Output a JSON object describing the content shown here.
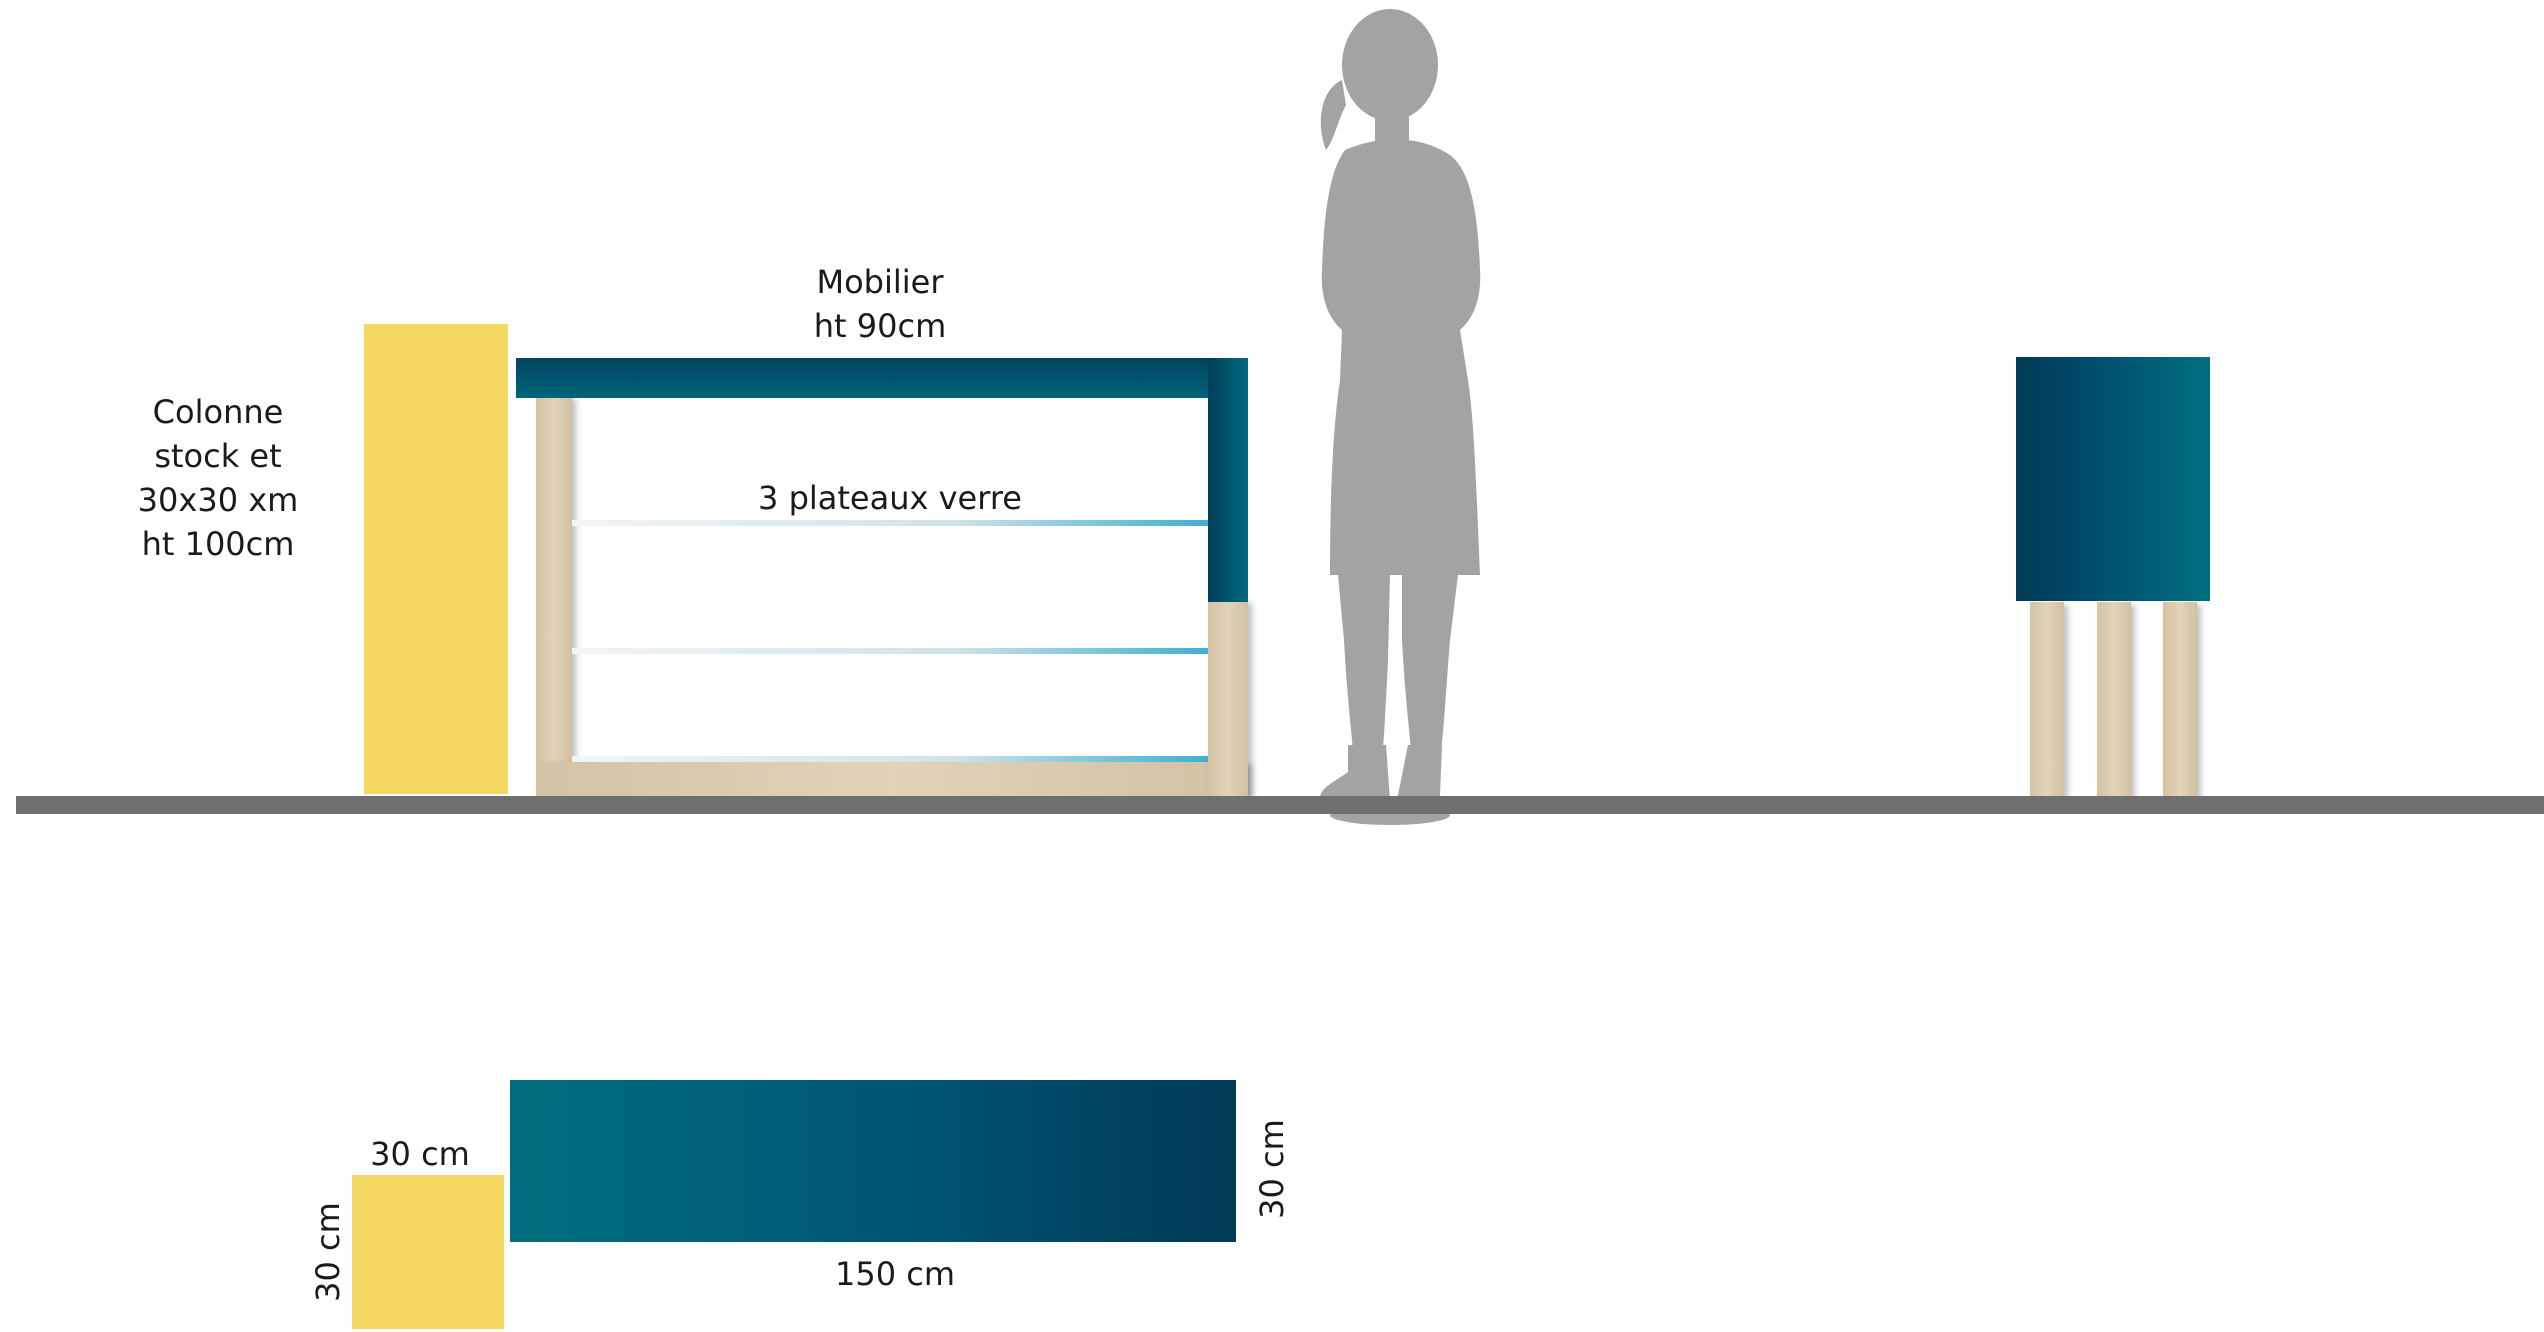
{
  "labels": {
    "column": [
      "Colonne",
      "stock et",
      "30x30 xm",
      "ht 100cm"
    ],
    "furniture": [
      "Mobilier",
      "ht 90cm"
    ],
    "shelves": "3 plateaux verre",
    "plan_square_width": "30 cm",
    "plan_square_depth": "30 cm",
    "plan_table_length": "150 cm",
    "plan_table_depth": "30 cm"
  },
  "colors": {
    "yellow": "#f4d862",
    "teal_light": "#006f7e",
    "teal_dark": "#003a55",
    "wood": "#dccaaf",
    "floor": "#6f6f6f",
    "silhouette": "#a3a3a3"
  },
  "icons": {
    "person": "person-silhouette-icon"
  }
}
